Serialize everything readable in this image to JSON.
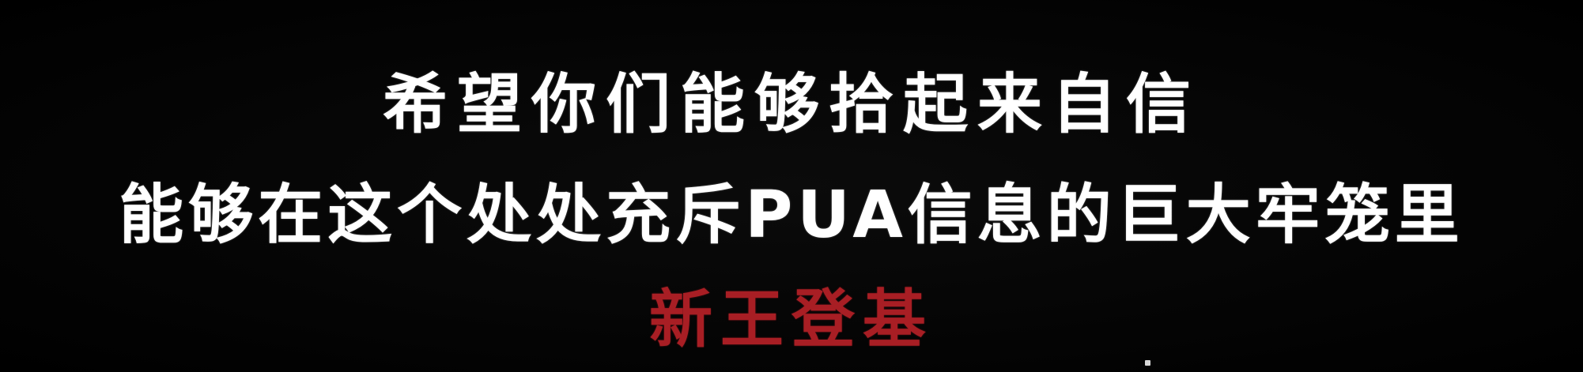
{
  "subtitle": {
    "line1": "希望你们能够拾起来自信",
    "line2": "能够在这个处处充斥PUA信息的巨大牢笼里",
    "line3": "新王登基"
  },
  "colors": {
    "background": "#000000",
    "text": "#ffffff",
    "accent": "#a81e24"
  }
}
